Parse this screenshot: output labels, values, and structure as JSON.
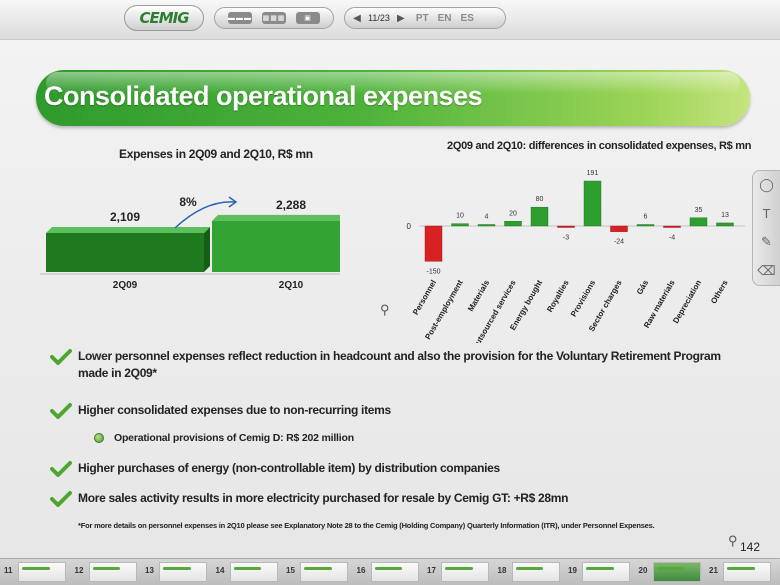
{
  "toolbar": {
    "logo": "CEMIG",
    "page_current": "11",
    "page_total": "/23",
    "langs": [
      "PT",
      "EN",
      "ES"
    ]
  },
  "title": "Consolidated operational expenses",
  "left_chart": {
    "title": "Expenses in 2Q09 and 2Q10, R$ mn",
    "growth_label": "8%"
  },
  "right_chart": {
    "title": "2Q09 and 2Q10: differences in consolidated expenses, R$ mn"
  },
  "chart_data": [
    {
      "type": "bar",
      "title": "Expenses in 2Q09 and 2Q10, R$ mn",
      "categories": [
        "2Q09",
        "2Q10"
      ],
      "values": [
        2109,
        2288
      ],
      "value_labels": [
        "2,109",
        "2,288"
      ],
      "colors": [
        "#1f7a1f",
        "#33a333"
      ],
      "annotation": "8%"
    },
    {
      "type": "bar",
      "title": "2Q09 and 2Q10: differences in consolidated expenses, R$ mn",
      "categories": [
        "Personnel",
        "Post-employment",
        "Materials",
        "Outsourced services",
        "Energy bought",
        "Royalties",
        "Provisions",
        "Sector charges",
        "Gás",
        "Raw materials",
        "Depreciation",
        "Others"
      ],
      "values": [
        -150,
        10,
        4,
        20,
        80,
        -3,
        191,
        -24,
        6,
        -4,
        35,
        13
      ],
      "zero_label": "0",
      "positive_color": "#2e9e2e",
      "negative_color": "#d92121"
    }
  ],
  "bullets": [
    "Lower personnel expenses reflect reduction in headcount and also the provision for the Voluntary Retirement Program made in 2Q09*",
    "Higher consolidated expenses due to non-recurring items",
    "Higher purchases of energy (non-controllable item) by distribution companies",
    "More sales activity results in more electricity purchased for resale by Cemig GT: +R$ 28mn"
  ],
  "sub_bullet": "Operational provisions of Cemig D: R$ 202 million",
  "footnote": "*For more details on personnel expenses in 2Q10 please see Explanatory Note 28 to the Cemig (Holding Company) Quarterly Information (ITR), under Personnel Expenses.",
  "slide_number": "142",
  "thumbnails": [
    "11",
    "12",
    "13",
    "14",
    "15",
    "16",
    "17",
    "18",
    "19",
    "20",
    "21"
  ],
  "active_thumbnail": "20"
}
